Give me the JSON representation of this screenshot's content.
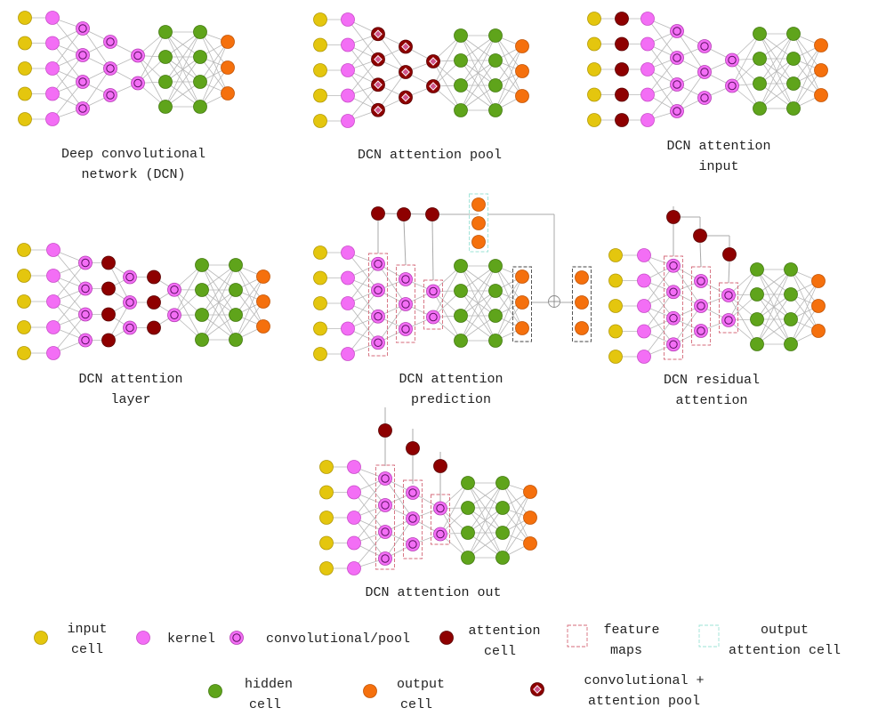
{
  "colors": {
    "input": "#e4c60e",
    "kernel": "#f36ef5",
    "conv": "#f36ef5",
    "attention": "#8e0000",
    "hidden": "#5fa41b",
    "output": "#f5700d",
    "edge": "#b8b8b8",
    "feature_map": "#d46a7a",
    "output_attention": "#9be3d6"
  },
  "diagrams": [
    {
      "id": "dcn",
      "label_lines": [
        "Deep convolutional",
        "network (DCN)"
      ]
    },
    {
      "id": "pool",
      "label_lines": [
        "DCN attention pool"
      ]
    },
    {
      "id": "input",
      "label_lines": [
        "DCN attention",
        "input"
      ]
    },
    {
      "id": "layer",
      "label_lines": [
        "DCN attention",
        "layer"
      ]
    },
    {
      "id": "prediction",
      "label_lines": [
        "DCN attention",
        "prediction"
      ]
    },
    {
      "id": "residual",
      "label_lines": [
        "DCN residual",
        "attention"
      ]
    },
    {
      "id": "out",
      "label_lines": [
        "DCN attention out"
      ]
    }
  ],
  "legend": {
    "input_cell": [
      "input",
      "cell"
    ],
    "kernel": [
      "kernel"
    ],
    "conv_pool": [
      "convolutional/pool"
    ],
    "attention_cell": [
      "attention",
      "cell"
    ],
    "feature_maps": [
      "feature",
      "maps"
    ],
    "output_attention_cell": [
      "output",
      "attention cell"
    ],
    "hidden_cell": [
      "hidden",
      "cell"
    ],
    "output_cell": [
      "output",
      "cell"
    ],
    "conv_attention_pool": [
      "convolutional +",
      "attention pool"
    ]
  }
}
